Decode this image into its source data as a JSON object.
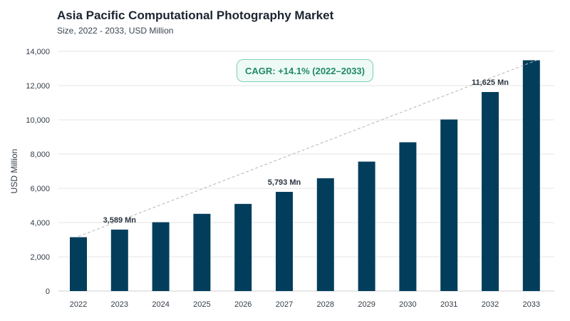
{
  "header": {
    "title": "Asia Pacific Computational Photography Market",
    "subtitle": "Size, 2022 - 2033, USD Million"
  },
  "annotation": {
    "cagr_text": "CAGR: +14.1% (2022–2033)"
  },
  "colors": {
    "bar": "#023e5c",
    "trendline": "#b5b5b5",
    "grid": "#e6e6e6",
    "badge_border": "#7fcfb3",
    "badge_text": "#1f8a66"
  },
  "chart_data": {
    "type": "bar",
    "title": "Asia Pacific Computational Photography Market",
    "subtitle": "Size, 2022 - 2033, USD Million",
    "xlabel": "",
    "ylabel": "USD Million",
    "ylim": [
      0,
      14000
    ],
    "yticks": [
      0,
      2000,
      4000,
      6000,
      8000,
      10000,
      12000,
      14000
    ],
    "ytick_labels": [
      "0",
      "2,000",
      "4,000",
      "6,000",
      "8,000",
      "10,000",
      "12,000",
      "14,000"
    ],
    "categories": [
      "2022",
      "2023",
      "2024",
      "2025",
      "2026",
      "2027",
      "2028",
      "2029",
      "2030",
      "2031",
      "2032",
      "2033"
    ],
    "values": [
      3145,
      3589,
      4020,
      4510,
      5090,
      5793,
      6590,
      7560,
      8690,
      10020,
      11625,
      13480
    ],
    "data_labels": [
      {
        "category": "2023",
        "text": "3,589 Mn"
      },
      {
        "category": "2027",
        "text": "5,793 Mn"
      },
      {
        "category": "2032",
        "text": "11,625 Mn"
      }
    ],
    "trendline": {
      "style": "dashed",
      "from": [
        "2022",
        3145
      ],
      "to": [
        "2033",
        13480
      ]
    },
    "grid": true,
    "legend": "none"
  }
}
